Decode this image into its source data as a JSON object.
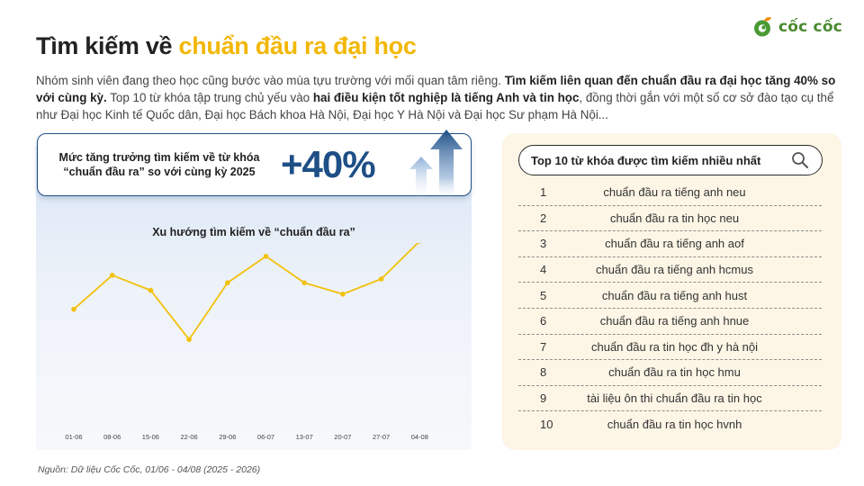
{
  "brand": {
    "name": "cốc cốc"
  },
  "header": {
    "title_plain": "Tìm kiếm về ",
    "title_highlight": "chuẩn đầu ra đại học"
  },
  "intro": {
    "p1": "Nhóm sinh viên đang theo học cũng bước vào mùa tựu trường với mối quan tâm riêng. ",
    "b1": "Tìm kiếm liên quan đến chuẩn đầu ra đại học tăng 40% so với cùng kỳ.",
    "p2": " Top 10 từ khóa tập trung chủ yếu vào ",
    "b2": "hai điều kiện tốt nghiệp là tiếng Anh và tin học",
    "p3": ", đồng thời gắn với một số cơ sở đào tạo cụ thể như Đại học Kinh tế Quốc dân, Đại học Bách khoa Hà Nội, Đại học Y Hà Nội và Đại học Sư phạm Hà Nội..."
  },
  "stat": {
    "label": "Mức tăng trưởng tìm kiếm về từ khóa “chuẩn đầu ra” so với cùng kỳ 2025",
    "value": "+40%"
  },
  "chart_data": {
    "type": "line",
    "title": "Xu hướng tìm kiếm về “chuẩn đầu ra”",
    "categories": [
      "01-06",
      "08-06",
      "15-06",
      "22-06",
      "29-06",
      "06-07",
      "13-07",
      "20-07",
      "27-07",
      "04-08"
    ],
    "series": [
      {
        "values": [
          52,
          61,
          57,
          44,
          59,
          66,
          59,
          56,
          60,
          70
        ]
      }
    ],
    "ylim": [
      0,
      100
    ],
    "grid": false,
    "color": "#f2c10d"
  },
  "source": "Nguồn: Dữ liệu Cốc Cốc, 01/06 - 04/08 (2025 - 2026)",
  "top_keywords": {
    "title": "Top 10 từ khóa được tìm kiếm nhiều nhất",
    "items": [
      {
        "rank": "1",
        "keyword": "chuẩn đầu ra tiếng anh neu"
      },
      {
        "rank": "2",
        "keyword": "chuẩn đầu ra tin học neu"
      },
      {
        "rank": "3",
        "keyword": "chuẩn đầu ra tiếng anh aof"
      },
      {
        "rank": "4",
        "keyword": "chuẩn đầu ra tiếng anh hcmus"
      },
      {
        "rank": "5",
        "keyword": "chuẩn đầu ra tiếng anh hust"
      },
      {
        "rank": "6",
        "keyword": "chuẩn đầu ra tiếng anh hnue"
      },
      {
        "rank": "7",
        "keyword": "chuẩn đầu ra tin học đh y hà nội"
      },
      {
        "rank": "8",
        "keyword": "chuẩn đầu ra tin học hmu"
      },
      {
        "rank": "9",
        "keyword": "tài liệu ôn thi chuẩn đầu ra tin học"
      },
      {
        "rank": "10",
        "keyword": "chuẩn đầu ra tin học hvnh"
      }
    ]
  },
  "colors": {
    "accent": "#f2b705",
    "navy": "#1e4f86",
    "brand_green": "#4a8a2f",
    "brand_orange": "#f28c00"
  }
}
